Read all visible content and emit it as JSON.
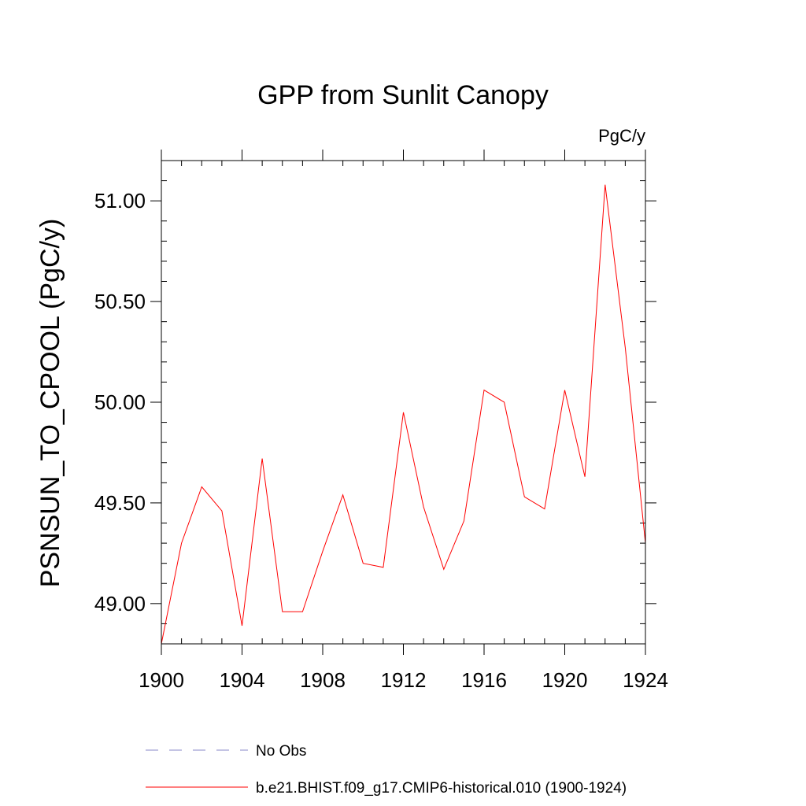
{
  "chart_data": {
    "type": "line",
    "title": "GPP from Sunlit Canopy",
    "units_label": "PgC/y",
    "xlabel": "",
    "ylabel": "PSNSUN_TO_CPOOL  (PgC/y)",
    "xlim": [
      1900,
      1924
    ],
    "ylim": [
      48.8,
      51.2
    ],
    "x_ticks": [
      1900,
      1904,
      1908,
      1912,
      1916,
      1920,
      1924
    ],
    "x_tick_labels": [
      "1900",
      "1904",
      "1908",
      "1912",
      "1916",
      "1920",
      "1924"
    ],
    "y_ticks": [
      49.0,
      49.5,
      50.0,
      50.5,
      51.0
    ],
    "y_tick_labels": [
      "49.00",
      "49.50",
      "50.00",
      "50.50",
      "51.00"
    ],
    "x": [
      1900,
      1901,
      1902,
      1903,
      1904,
      1905,
      1906,
      1907,
      1908,
      1909,
      1910,
      1911,
      1912,
      1913,
      1914,
      1915,
      1916,
      1917,
      1918,
      1919,
      1920,
      1921,
      1922,
      1923,
      1924
    ],
    "series": [
      {
        "name": "b.e21.BHIST.f09_g17.CMIP6-historical.010 (1900-1924)",
        "color": "#ff0000",
        "values": [
          48.8,
          49.3,
          49.58,
          49.46,
          48.89,
          49.72,
          48.96,
          48.96,
          49.26,
          49.54,
          49.2,
          49.18,
          49.95,
          49.48,
          49.17,
          49.41,
          50.06,
          50.0,
          49.53,
          49.47,
          50.06,
          49.63,
          51.08,
          50.27,
          49.3
        ]
      }
    ],
    "legend": [
      {
        "label": "No Obs",
        "style": "dashed",
        "color": "#8a8ac8"
      },
      {
        "label": "b.e21.BHIST.f09_g17.CMIP6-historical.010 (1900-1924)",
        "style": "solid",
        "color": "#ff0000"
      }
    ],
    "legend_position": "bottom"
  }
}
